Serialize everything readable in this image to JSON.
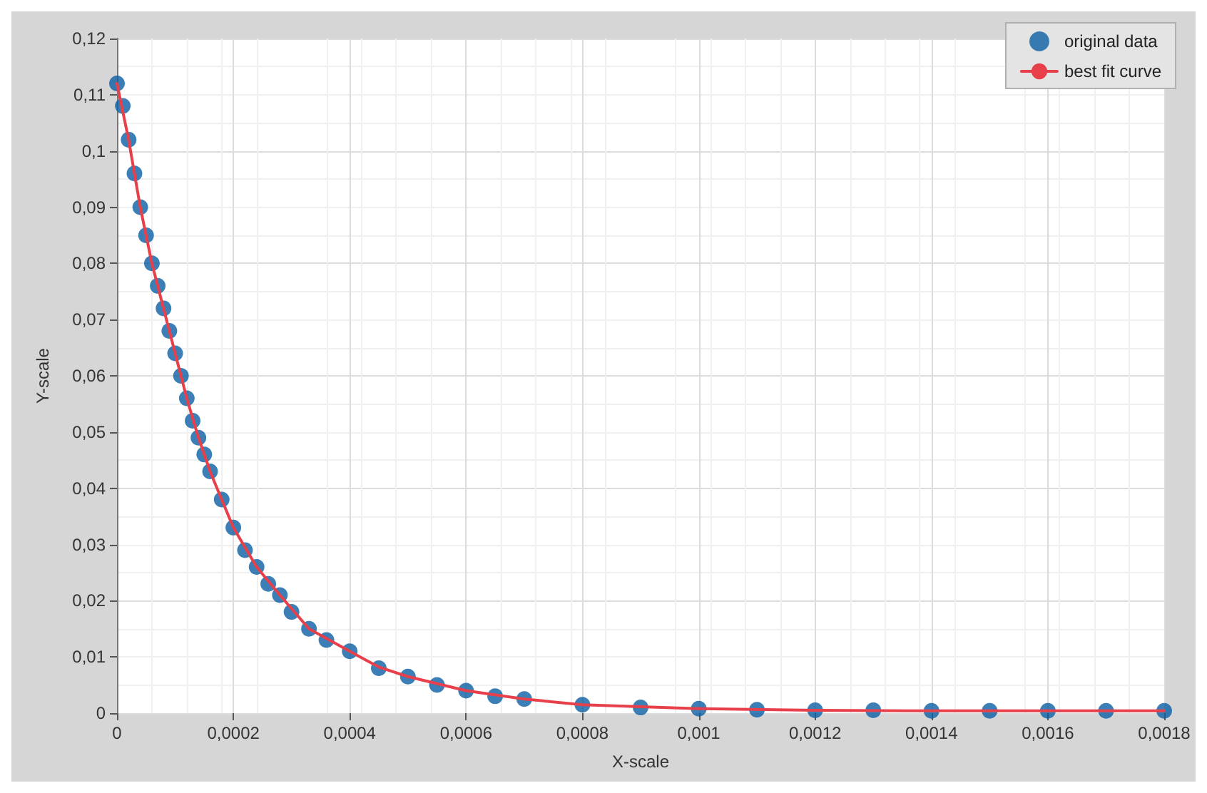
{
  "chart_data": {
    "type": "scatter",
    "xlabel": "X-scale",
    "ylabel": "Y-scale",
    "xlim": [
      0,
      0.0018
    ],
    "ylim": [
      0,
      0.12
    ],
    "xticks": [
      0,
      {
        "value": 0.0002,
        "label": "0,0002"
      },
      {
        "value": 0.0004,
        "label": "0,0004"
      },
      {
        "value": 0.0006,
        "label": "0,0006"
      },
      {
        "value": 0.0008,
        "label": "0,0008"
      },
      {
        "value": 0.001,
        "label": "0,001"
      },
      {
        "value": 0.0012,
        "label": "0,0012"
      },
      {
        "value": 0.0014,
        "label": "0,0014"
      },
      {
        "value": 0.0016,
        "label": "0,0016"
      },
      {
        "value": 0.0018,
        "label": "0,0018"
      }
    ],
    "yticks": [
      0,
      {
        "value": 0.01,
        "label": "0,01"
      },
      {
        "value": 0.02,
        "label": "0,02"
      },
      {
        "value": 0.03,
        "label": "0,03"
      },
      {
        "value": 0.04,
        "label": "0,04"
      },
      {
        "value": 0.05,
        "label": "0,05"
      },
      {
        "value": 0.06,
        "label": "0,06"
      },
      {
        "value": 0.07,
        "label": "0,07"
      },
      {
        "value": 0.08,
        "label": "0,08"
      },
      {
        "value": 0.09,
        "label": "0,09"
      },
      {
        "value": 0.1,
        "label": "0,1"
      },
      {
        "value": 0.11,
        "label": "0,11"
      },
      {
        "value": 0.12,
        "label": "0,12"
      }
    ],
    "grid": true,
    "legend": "top right",
    "series": [
      {
        "name": "original data",
        "marker": "circle",
        "color": "#0b5fa5",
        "x": [
          0,
          1e-05,
          2e-05,
          3e-05,
          4e-05,
          5e-05,
          6e-05,
          7e-05,
          8e-05,
          9e-05,
          0.0001,
          0.00011,
          0.00012,
          0.00013,
          0.00014,
          0.00015,
          0.00016,
          0.00018,
          0.0002,
          0.00022,
          0.00024,
          0.00026,
          0.00028,
          0.0003,
          0.00033,
          0.00036,
          0.0004,
          0.00045,
          0.0005,
          0.00055,
          0.0006,
          0.00065,
          0.0007,
          0.0008,
          0.0009,
          0.001,
          0.0011,
          0.0012,
          0.0013,
          0.0014,
          0.0015,
          0.0016,
          0.0017,
          0.0018
        ],
        "values": [
          0.112,
          0.108,
          0.102,
          0.096,
          0.09,
          0.085,
          0.08,
          0.076,
          0.072,
          0.068,
          0.064,
          0.06,
          0.056,
          0.052,
          0.049,
          0.046,
          0.043,
          0.038,
          0.033,
          0.029,
          0.026,
          0.023,
          0.021,
          0.018,
          0.015,
          0.013,
          0.011,
          0.008,
          0.0065,
          0.005,
          0.004,
          0.003,
          0.0025,
          0.0015,
          0.001,
          0.0008,
          0.0006,
          0.0005,
          0.0005,
          0.0004,
          0.0004,
          0.0004,
          0.0004,
          0.0004
        ]
      },
      {
        "name": "best fit curve",
        "type": "line",
        "marker": "none",
        "color": "#e8404a",
        "line_style": "solid",
        "x": [
          0,
          2e-05,
          4e-05,
          6e-05,
          8e-05,
          0.0001,
          0.00012,
          0.00014,
          0.00016,
          0.00018,
          0.0002,
          0.00024,
          0.00028,
          0.00033,
          0.0004,
          0.00045,
          0.0005,
          0.0006,
          0.0007,
          0.0008,
          0.001,
          0.0012,
          0.0014,
          0.0016,
          0.0018
        ],
        "values": [
          0.112,
          0.102,
          0.09,
          0.08,
          0.072,
          0.064,
          0.056,
          0.049,
          0.043,
          0.038,
          0.033,
          0.026,
          0.021,
          0.015,
          0.011,
          0.0082,
          0.0065,
          0.004,
          0.0025,
          0.0015,
          0.0008,
          0.0005,
          0.0004,
          0.0004,
          0.0004
        ]
      }
    ]
  }
}
